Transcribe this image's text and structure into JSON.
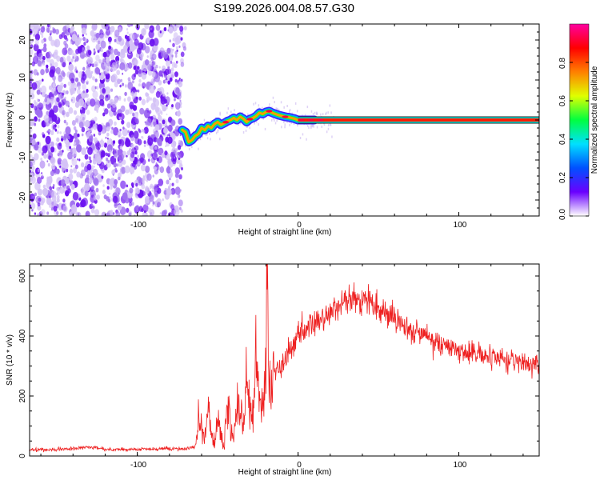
{
  "chart_data": [
    {
      "type": "heatmap",
      "title": "S199.2026.004.08.57.G30",
      "xlabel": "Height of straight line (km)",
      "ylabel": "Frequency (Hz)",
      "xlim": [
        -167,
        150
      ],
      "ylim": [
        -24,
        24
      ],
      "xticks": [
        -100,
        0,
        100
      ],
      "yticks": [
        -20,
        -10,
        0,
        10,
        20
      ],
      "xtick_labels": [
        "-100",
        "0",
        "100"
      ],
      "ytick_labels": [
        "-20",
        "-10",
        "0",
        "10",
        "20"
      ],
      "noise_region_x": [
        -167,
        -72
      ],
      "signal_start_x": -72,
      "trace": {
        "x": [
          -72,
          -70,
          -68,
          -66,
          -64,
          -62,
          -60,
          -58,
          -56,
          -54,
          -52,
          -50,
          -48,
          -46,
          -44,
          -42,
          -40,
          -38,
          -36,
          -34,
          -32,
          -30,
          -28,
          -26,
          -24,
          -22,
          -20,
          -18,
          -16,
          -14,
          -12,
          -10,
          -8,
          -6,
          -4,
          -2,
          0,
          2,
          5,
          10,
          20,
          40,
          60,
          80,
          100,
          120,
          150
        ],
        "freq": [
          -2.5,
          -3.0,
          -5.5,
          -5.0,
          -4.0,
          -3.5,
          -2.0,
          -2.5,
          -1.5,
          -2.0,
          -1.0,
          -0.5,
          -1.2,
          -0.8,
          -0.3,
          0.0,
          0.5,
          0.0,
          0.8,
          0.3,
          -0.5,
          0.2,
          0.5,
          1.0,
          1.8,
          1.5,
          2.0,
          2.2,
          1.8,
          1.5,
          1.2,
          1.0,
          0.8,
          0.7,
          0.5,
          0.3,
          0.0,
          0.0,
          0.0,
          0.0,
          0.0,
          0.0,
          0.0,
          0.0,
          0.0,
          0.0,
          0.0
        ]
      },
      "colorbar": {
        "label": "Normalized spectral amplitude",
        "range": [
          0,
          1
        ],
        "ticks": [
          0.0,
          0.2,
          0.4,
          0.6,
          0.8
        ],
        "tick_labels": [
          "0.0",
          "0.2",
          "0.4",
          "0.6",
          "0.8"
        ],
        "colormap": [
          "#ffffff",
          "#6a00ff",
          "#0050ff",
          "#00e0ff",
          "#00ff40",
          "#e0ff00",
          "#ff8000",
          "#ff0000",
          "#ff00a0"
        ]
      }
    },
    {
      "type": "line",
      "xlabel": "Height of straight line (km)",
      "ylabel": "SNR (10 * v/v)",
      "xlim": [
        -167,
        150
      ],
      "ylim": [
        0,
        640
      ],
      "xticks": [
        -100,
        0,
        100
      ],
      "yticks": [
        0,
        200,
        400,
        600
      ],
      "xtick_labels": [
        "-100",
        "0",
        "100"
      ],
      "ytick_labels": [
        "0",
        "200",
        "400",
        "600"
      ],
      "series": [
        {
          "name": "SNR",
          "color": "#ee2020",
          "x": [
            -167,
            -150,
            -140,
            -130,
            -120,
            -100,
            -80,
            -70,
            -64,
            -62,
            -60,
            -58,
            -56,
            -54,
            -52,
            -50,
            -48,
            -46,
            -44,
            -42,
            -40,
            -38,
            -36,
            -34,
            -32,
            -30,
            -28,
            -26,
            -24,
            -22,
            -20,
            -19,
            -18,
            -16,
            -14,
            -12,
            -10,
            -8,
            -6,
            -4,
            -2,
            0,
            5,
            10,
            15,
            20,
            25,
            30,
            35,
            40,
            45,
            50,
            55,
            60,
            65,
            70,
            75,
            80,
            85,
            90,
            95,
            100,
            110,
            120,
            130,
            140,
            150
          ],
          "y": [
            20,
            22,
            25,
            30,
            22,
            22,
            24,
            25,
            30,
            130,
            80,
            60,
            150,
            90,
            40,
            120,
            60,
            30,
            180,
            100,
            50,
            200,
            140,
            90,
            250,
            170,
            110,
            280,
            200,
            150,
            300,
            640,
            220,
            260,
            280,
            300,
            300,
            320,
            340,
            360,
            380,
            400,
            420,
            440,
            460,
            480,
            500,
            510,
            520,
            520,
            510,
            490,
            480,
            460,
            440,
            420,
            410,
            400,
            380,
            370,
            360,
            350,
            340,
            330,
            320,
            310,
            300
          ]
        }
      ]
    }
  ]
}
